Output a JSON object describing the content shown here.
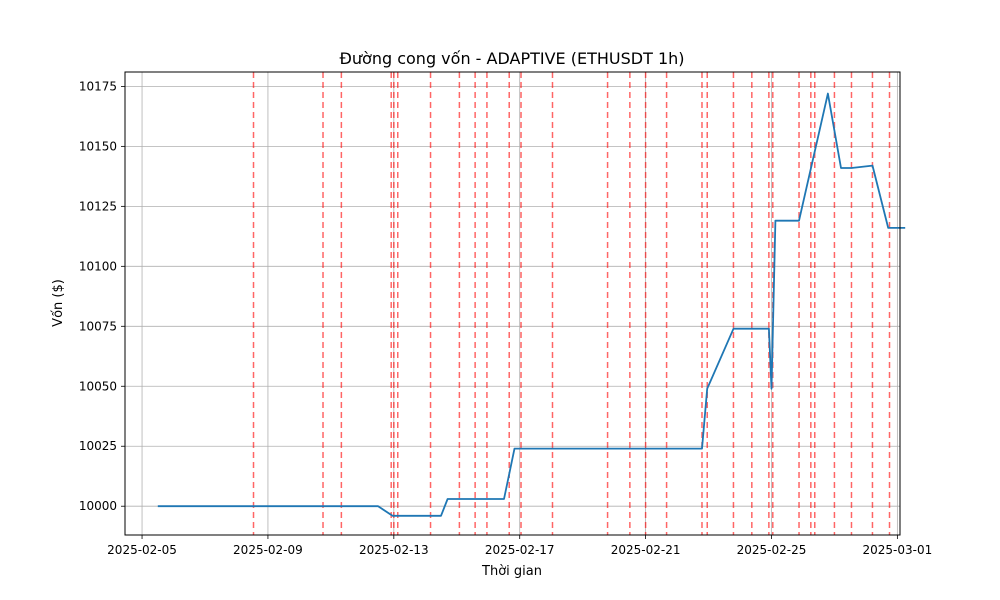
{
  "chart_data": {
    "type": "line",
    "title": "Đường cong vốn - ADAPTIVE (ETHUSDT 1h)",
    "xlabel": "Thời gian",
    "ylabel": "Vốn ($)",
    "xlim": [
      "2025-02-04T11:00",
      "2025-03-01T02:00"
    ],
    "ylim": [
      9988,
      10181
    ],
    "x_ticks": [
      "2025-02-05",
      "2025-02-09",
      "2025-02-13",
      "2025-02-17",
      "2025-02-21",
      "2025-02-25",
      "2025-03-01"
    ],
    "y_ticks": [
      10000,
      10025,
      10050,
      10075,
      10100,
      10125,
      10150,
      10175
    ],
    "grid": true,
    "line_color": "#1f77b4",
    "marker_color": "#ff0000",
    "series": [
      {
        "x": [
          "2025-02-05T12:00",
          "2025-02-12T12:00",
          "2025-02-12T23:00",
          "2025-02-13T01:00",
          "2025-02-14T12:00",
          "2025-02-14T17:00",
          "2025-02-16T12:00",
          "2025-02-16T20:00",
          "2025-02-22T19:00",
          "2025-02-22T23:00",
          "2025-02-23T19:00",
          "2025-02-24T22:00",
          "2025-02-25T00:00",
          "2025-02-25T03:00",
          "2025-02-25T21:00",
          "2025-02-26T19:00",
          "2025-02-27T05:00",
          "2025-02-27T13:00",
          "2025-02-28T05:00",
          "2025-02-28T17:00",
          "2025-03-01T06:00"
        ],
        "values": [
          10000,
          10000,
          9996,
          9996,
          9996,
          10003,
          10003,
          10024,
          10024,
          10049,
          10074,
          10074,
          10049,
          10119,
          10119,
          10172,
          10141,
          10141,
          10142,
          10116,
          10116
        ]
      }
    ],
    "trade_markers": [
      "2025-02-08T13:00",
      "2025-02-10T18:00",
      "2025-02-11T08:00",
      "2025-02-12T22:00",
      "2025-02-13T00:00",
      "2025-02-13T03:00",
      "2025-02-14T04:00",
      "2025-02-15T02:00",
      "2025-02-15T14:00",
      "2025-02-15T23:00",
      "2025-02-16T16:00",
      "2025-02-17T01:00",
      "2025-02-18T01:00",
      "2025-02-19T19:00",
      "2025-02-20T12:00",
      "2025-02-21T00:00",
      "2025-02-21T16:00",
      "2025-02-22T19:00",
      "2025-02-22T23:00",
      "2025-02-23T19:00",
      "2025-02-24T09:00",
      "2025-02-24T22:00",
      "2025-02-25T01:00",
      "2025-02-25T21:00",
      "2025-02-26T06:00",
      "2025-02-26T09:00",
      "2025-02-27T00:00",
      "2025-02-27T13:00",
      "2025-02-28T05:00",
      "2025-02-28T18:00"
    ]
  }
}
